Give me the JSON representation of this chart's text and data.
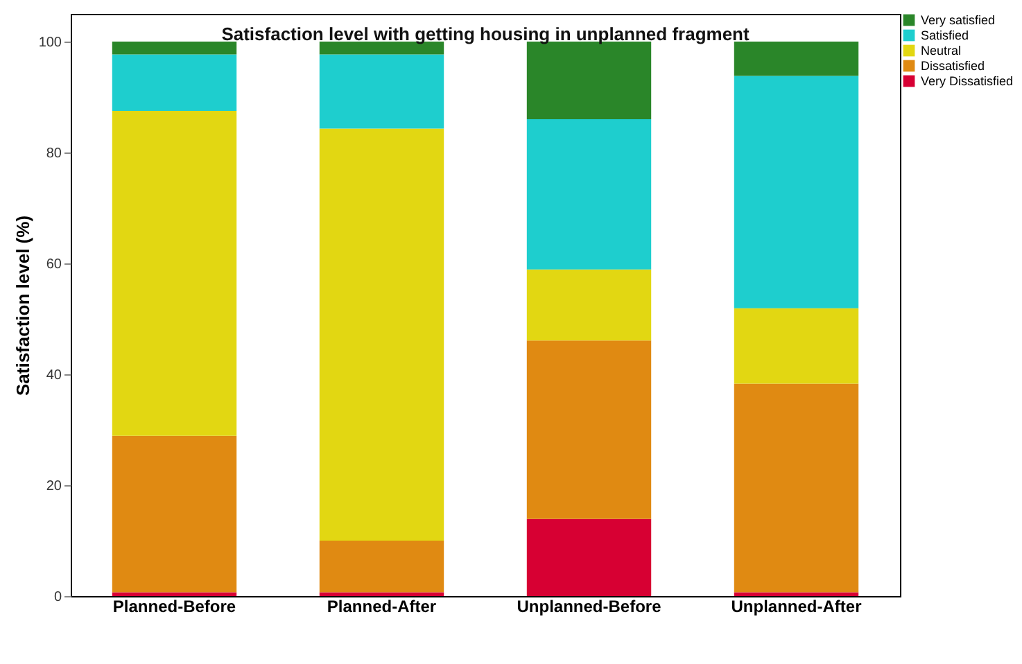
{
  "chart_data": {
    "type": "bar",
    "title": "Satisfaction level with getting housing in unplanned fragment",
    "ylabel": "Satisfaction level (%)",
    "categories": [
      "Planned-Before",
      "Planned-After",
      "Unplanned-Before",
      "Unplanned-After"
    ],
    "stacked": true,
    "series": [
      {
        "name": "Very Dissatisfied",
        "color": "#d70033",
        "values": [
          0.7,
          0.7,
          13.9,
          0.7
        ]
      },
      {
        "name": "Dissatisfied",
        "color": "#e08a12",
        "values": [
          28.2,
          9.3,
          32.2,
          37.6
        ]
      },
      {
        "name": "Neutral",
        "color": "#e2d712",
        "values": [
          58.6,
          74.3,
          12.8,
          13.6
        ]
      },
      {
        "name": "Satisfied",
        "color": "#1ecece",
        "values": [
          10.2,
          13.4,
          27.1,
          41.9
        ]
      },
      {
        "name": "Very satisfied",
        "color": "#2a8629",
        "values": [
          2.3,
          2.3,
          14.0,
          6.2
        ]
      }
    ],
    "ylim": [
      0,
      105
    ],
    "yticks": [
      0,
      20,
      40,
      60,
      80,
      100
    ],
    "grid": false,
    "legend": "top right"
  }
}
